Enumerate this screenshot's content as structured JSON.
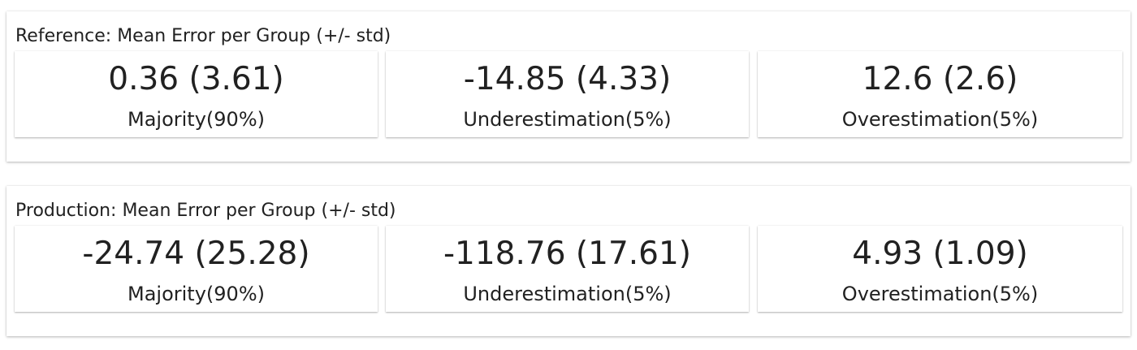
{
  "panels": [
    {
      "title": "Reference: Mean Error per Group (+/- std)",
      "cards": [
        {
          "value": "0.36 (3.61)",
          "label": "Majority(90%)"
        },
        {
          "value": "-14.85 (4.33)",
          "label": "Underestimation(5%)"
        },
        {
          "value": "12.6 (2.6)",
          "label": "Overestimation(5%)"
        }
      ]
    },
    {
      "title": "Production: Mean Error per Group (+/- std)",
      "cards": [
        {
          "value": "-24.74 (25.28)",
          "label": "Majority(90%)"
        },
        {
          "value": "-118.76 (17.61)",
          "label": "Underestimation(5%)"
        },
        {
          "value": "4.93 (1.09)",
          "label": "Overestimation(5%)"
        }
      ]
    }
  ]
}
